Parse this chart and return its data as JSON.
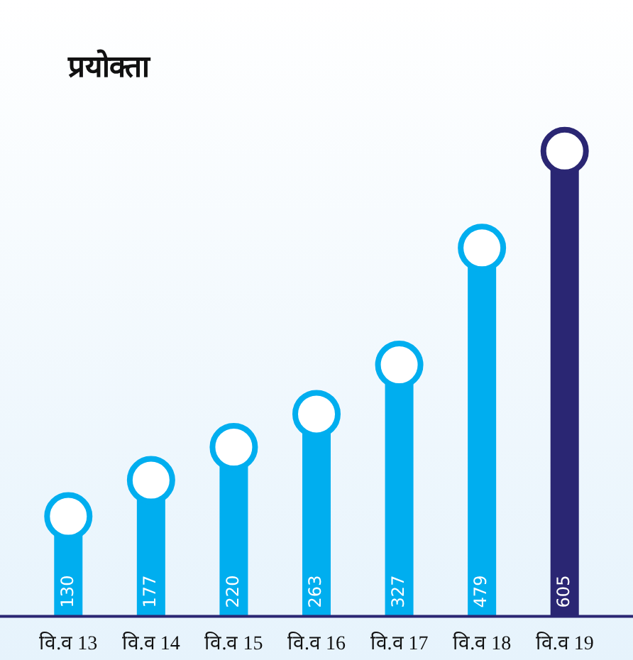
{
  "chart_data": {
    "type": "lollipop",
    "title": "प्रयोक्ता",
    "categories": [
      "वि.व 13",
      "वि.व 14",
      "वि.व 15",
      "वि.व 16",
      "वि.व 17",
      "वि.व 18",
      "वि.व 19"
    ],
    "values": [
      130,
      177,
      220,
      263,
      327,
      479,
      605
    ],
    "colors": [
      "#00aeef",
      "#00aeef",
      "#00aeef",
      "#00aeef",
      "#00aeef",
      "#00aeef",
      "#2a2673"
    ],
    "marker": "circle",
    "data_labels": true
  }
}
